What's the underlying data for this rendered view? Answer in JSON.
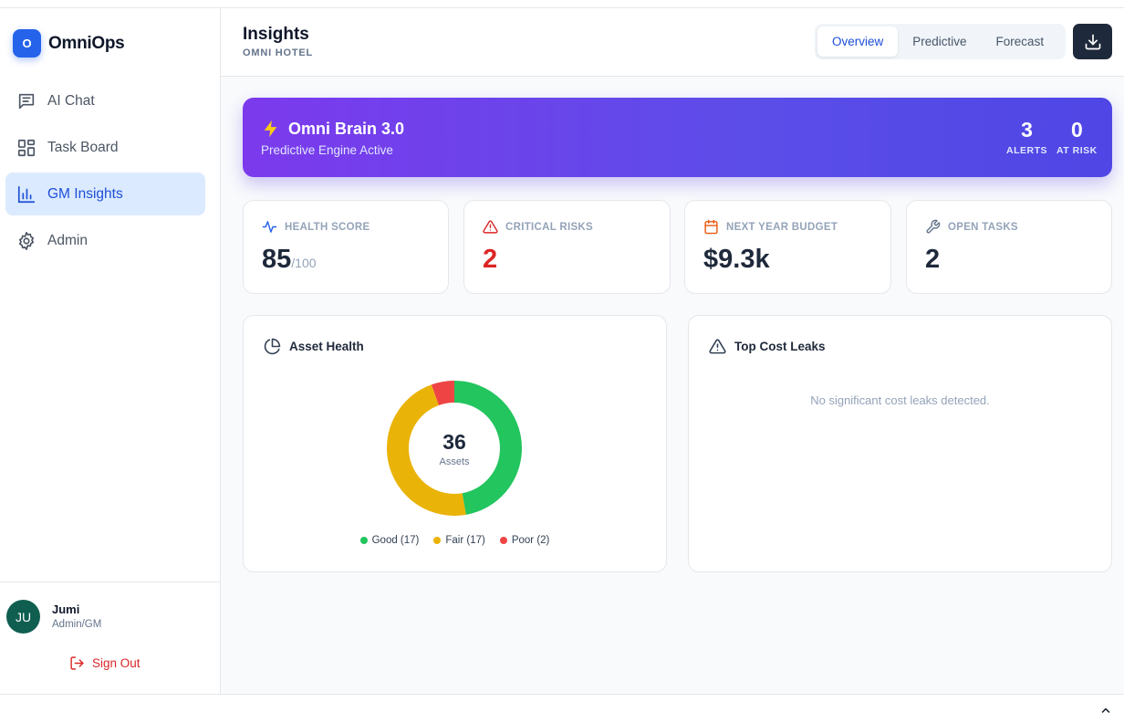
{
  "brand": {
    "logo_letter": "O",
    "name": "OmniOps"
  },
  "sidebar": {
    "items": [
      {
        "label": "AI Chat",
        "icon": "chat-icon"
      },
      {
        "label": "Task Board",
        "icon": "grid-icon"
      },
      {
        "label": "GM Insights",
        "icon": "bar-chart-icon",
        "active": true
      },
      {
        "label": "Admin",
        "icon": "gear-icon"
      }
    ]
  },
  "user": {
    "initials": "JU",
    "name": "Jumi",
    "role": "Admin/GM",
    "signout_label": "Sign Out"
  },
  "header": {
    "title": "Insights",
    "subtitle": "OMNI HOTEL",
    "tabs": [
      {
        "label": "Overview",
        "active": true
      },
      {
        "label": "Predictive"
      },
      {
        "label": "Forecast"
      }
    ],
    "download_icon": "download-icon"
  },
  "banner": {
    "title": "Omni Brain 3.0",
    "subtitle": "Predictive Engine Active",
    "stats": [
      {
        "value": "3",
        "label": "ALERTS"
      },
      {
        "value": "0",
        "label": "AT RISK"
      }
    ]
  },
  "kpis": [
    {
      "label": "HEALTH SCORE",
      "value": "85",
      "unit": "/100",
      "icon": "activity-icon",
      "color": "#2563eb"
    },
    {
      "label": "CRITICAL RISKS",
      "value": "2",
      "icon": "alert-triangle-icon",
      "color": "#dc2626"
    },
    {
      "label": "NEXT YEAR BUDGET",
      "value": "$9.3k",
      "icon": "calendar-icon",
      "color": "#ea580c"
    },
    {
      "label": "OPEN TASKS",
      "value": "2",
      "icon": "wrench-icon",
      "color": "#64748b"
    }
  ],
  "asset_health": {
    "title": "Asset Health",
    "total": "36",
    "total_label": "Assets",
    "segments": [
      {
        "name": "Good (17)",
        "value": 17,
        "color": "#22c55e"
      },
      {
        "name": "Fair (17)",
        "value": 17,
        "color": "#eab308"
      },
      {
        "name": "Poor (2)",
        "value": 2,
        "color": "#ef4444"
      }
    ]
  },
  "cost_leaks": {
    "title": "Top Cost Leaks",
    "empty_message": "No significant cost leaks detected."
  },
  "colors": {
    "accent": "#2563eb",
    "sidebar_active_bg": "#dbeafe",
    "banner_start": "#7c3aed",
    "banner_end": "#4f46e5",
    "danger": "#dc2626"
  }
}
